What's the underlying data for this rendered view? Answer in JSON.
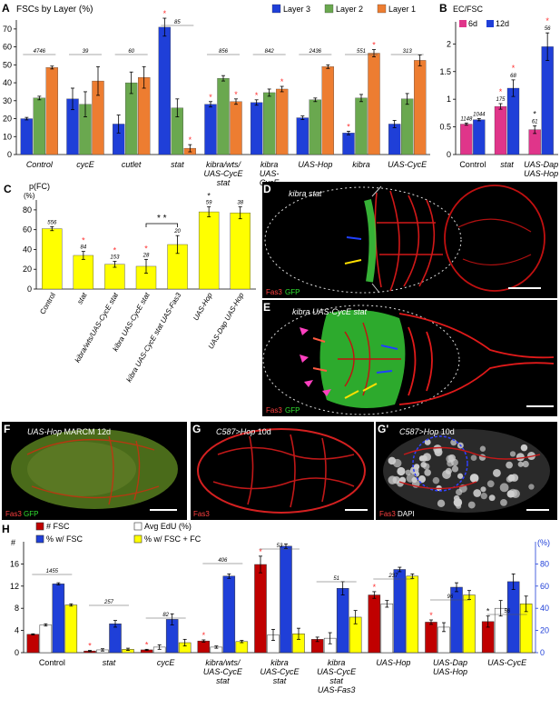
{
  "panel_letters": {
    "A": "A",
    "B": "B",
    "C": "C",
    "D": "D",
    "E": "E",
    "F": "F",
    "G": "G",
    "G2": "G'",
    "H": "H"
  },
  "colors": {
    "blue": "#1f3fd8",
    "green": "#6aa84f",
    "orange": "#ed7d31",
    "pink": "#e0358a",
    "yellow": "#ffff00",
    "darkred": "#c00000",
    "white": "#ffffff",
    "star_red": "#ff3030",
    "star_black": "#111111"
  },
  "chart_data": [
    {
      "panel": "A",
      "type": "bar",
      "title": "FSCs by Layer (%)",
      "categories": [
        "Control",
        "cycE",
        "cutlet",
        "stat",
        "kibra/wts/ UAS-CycE stat",
        "kibra UAS- CycE stat",
        "UAS-Hop",
        "kibra",
        "UAS-CycE"
      ],
      "ylim": [
        0,
        75
      ],
      "yticks": [
        0,
        10,
        20,
        30,
        40,
        50,
        60,
        70
      ],
      "series": [
        {
          "name": "Layer 3",
          "color": "#1f3fd8",
          "values": [
            20,
            31,
            17,
            71,
            28,
            29,
            20.5,
            12,
            17
          ],
          "errors": [
            0.7,
            6,
            5,
            5,
            1.5,
            1.5,
            1,
            1,
            2
          ]
        },
        {
          "name": "Layer 2",
          "color": "#6aa84f",
          "values": [
            31.5,
            28,
            40,
            26,
            42.5,
            34.5,
            30.5,
            31.5,
            31
          ],
          "errors": [
            1,
            7,
            6,
            5,
            1.5,
            2,
            1,
            2,
            3
          ]
        },
        {
          "name": "Layer 1",
          "color": "#ed7d31",
          "values": [
            48.5,
            41,
            43,
            3.5,
            29.5,
            36.5,
            49,
            56.5,
            52.5
          ],
          "errors": [
            0.8,
            8,
            6,
            2,
            1.5,
            1.5,
            1,
            2,
            3
          ]
        }
      ],
      "n_labels": [
        "4746",
        "39",
        "60",
        "85",
        "856",
        "842",
        "2436",
        "551",
        "313"
      ],
      "stars": [
        [
          false,
          false,
          false
        ],
        [
          false,
          false,
          false
        ],
        [
          false,
          false,
          false
        ],
        [
          true,
          false,
          true
        ],
        [
          true,
          false,
          true
        ],
        [
          true,
          false,
          true
        ],
        [
          false,
          false,
          false
        ],
        [
          true,
          false,
          true
        ],
        [
          false,
          false,
          false
        ]
      ]
    },
    {
      "panel": "B",
      "type": "bar",
      "title": "EC/FSC",
      "categories": [
        "Control",
        "stat",
        "UAS-Dap UAS-Hop"
      ],
      "ylim": [
        0,
        2.4
      ],
      "yticks": [
        "0",
        "0.5",
        "1",
        "1.5",
        "2"
      ],
      "series": [
        {
          "name": "6d",
          "color": "#e0358a",
          "values": [
            0.55,
            0.87,
            0.45
          ],
          "errors": [
            0.02,
            0.05,
            0.07
          ]
        },
        {
          "name": "12d",
          "color": "#1f3fd8",
          "values": [
            0.63,
            1.2,
            1.95
          ],
          "errors": [
            0.02,
            0.15,
            0.25
          ]
        }
      ],
      "n_labels": [
        [
          "1148",
          "1044"
        ],
        [
          "175",
          "68"
        ],
        [
          "61",
          "56"
        ]
      ]
    },
    {
      "panel": "C",
      "type": "bar",
      "title": "p(FC)",
      "ylabel": "(%)",
      "categories": [
        "Control",
        "stat",
        "kibra/wts/UAS-CycE stat",
        "kibra UAS-CycE stat",
        "kibra UAS-CycE stat UAS-Fas3",
        "UAS-Hop",
        "UAS-Dap UAS-Hop"
      ],
      "ylim": [
        0,
        90
      ],
      "yticks": [
        0,
        20,
        40,
        60,
        80
      ],
      "series": [
        {
          "name": "",
          "color": "#ffff00",
          "values": [
            61,
            34,
            25,
            23,
            45,
            78,
            77
          ],
          "errors": [
            2,
            4,
            3,
            7,
            9,
            5,
            6
          ]
        }
      ],
      "n_labels": [
        "556",
        "84",
        "153",
        "28",
        "20",
        "59",
        "38"
      ],
      "bracket_label": "* *"
    },
    {
      "panel": "H",
      "type": "bar",
      "categories": [
        "Control",
        "stat",
        "cycE",
        "kibra/wts/ UAS-CycE stat",
        "kibra UAS-CycE stat",
        "kibra UAS-CycE stat UAS-Fas3",
        "UAS-Hop",
        "UAS-Dap UAS-Hop",
        "UAS-CycE"
      ],
      "left_axis_label": "#",
      "right_axis_label": "(%)",
      "left_ylim": [
        0,
        20
      ],
      "left_yticks": [
        0,
        4,
        8,
        12,
        16
      ],
      "right_ylim": [
        0,
        100
      ],
      "right_yticks": [
        0,
        20,
        40,
        60,
        80
      ],
      "series": [
        {
          "name": "# FSC",
          "axis": "left",
          "color": "#c00000",
          "values": [
            3.3,
            0.3,
            0.5,
            2.1,
            15.9,
            2.4,
            10.4,
            5.5,
            5.6
          ],
          "errors": [
            0.1,
            0.1,
            0.1,
            0.2,
            1.5,
            0.4,
            0.6,
            0.4,
            1
          ]
        },
        {
          "name": "Avg EdU (%)",
          "axis": "right",
          "color": "#ffffff",
          "values": [
            25,
            2.5,
            5,
            5,
            16,
            13,
            44,
            23,
            40
          ],
          "errors": [
            1,
            1,
            2,
            1,
            5,
            5,
            3,
            4,
            7
          ]
        },
        {
          "name": "% w/ FSC",
          "axis": "right",
          "color": "#1f3fd8",
          "values": [
            62,
            26,
            30,
            69,
            96,
            58,
            75,
            59,
            64
          ],
          "errors": [
            1,
            3,
            5,
            2,
            2,
            6,
            2,
            4,
            7
          ]
        },
        {
          "name": "% w/ FSC + FC",
          "axis": "right",
          "color": "#ffff00",
          "values": [
            43,
            3,
            9,
            10,
            17,
            32,
            69,
            52,
            44
          ],
          "errors": [
            1,
            1,
            3,
            1,
            5,
            6,
            2,
            4,
            7
          ]
        }
      ],
      "n_labels": [
        "1455",
        "257",
        "82",
        "406",
        "53",
        "51",
        "237",
        "96",
        "56"
      ]
    }
  ],
  "micrographs": {
    "D": {
      "label": "kibra stat",
      "stain1": "Fas3",
      "stain2": "GFP"
    },
    "E": {
      "label": "kibra UAS-CycE stat",
      "stain1": "Fas3",
      "stain2": "GFP"
    },
    "F": {
      "label_italic": "UAS-Hop",
      "label_rest": " MARCM 12d",
      "stain1": "Fas3",
      "stain2": "GFP"
    },
    "G": {
      "label_italic": "C587>Hop",
      "label_rest": " 10d",
      "stain1": "Fas3"
    },
    "G2": {
      "label_italic": "C587>Hop",
      "label_rest": " 10d",
      "stain1": "Fas3",
      "stain2": "DAPI"
    }
  }
}
